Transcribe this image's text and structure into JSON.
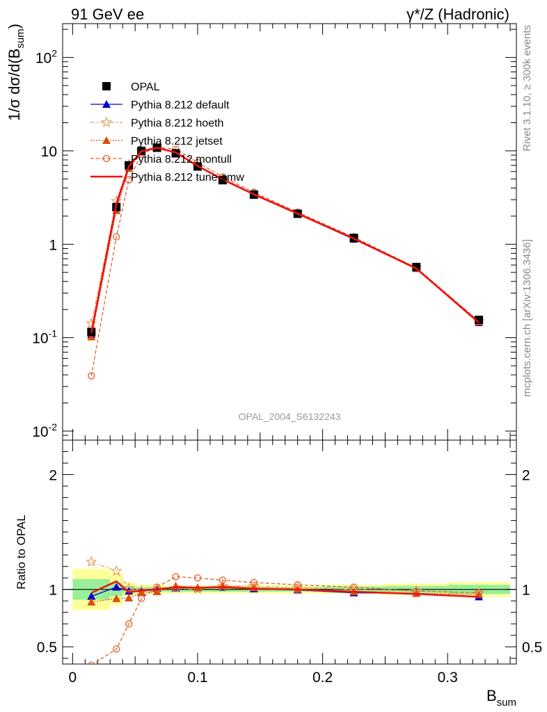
{
  "header": {
    "left_title": "91 GeV ee",
    "right_title": "γ*/Z (Hadronic)"
  },
  "side_text": {
    "rivet": "Rivet 3.1.10, ≥ 300k events",
    "mcplots": "mcplots.cern.ch [arXiv:1306.3436]"
  },
  "watermark": "OPAL_2004_S6132243",
  "chart_data": [
    {
      "type": "line",
      "scale": "log",
      "ylabel": "1/σ dσ/d(B_sum)",
      "ylim": [
        0.008,
        230
      ],
      "ytick_labels": [
        "10^-2",
        "10^-1",
        "1",
        "10",
        "10^2"
      ],
      "x": [
        0.015,
        0.035,
        0.045,
        0.055,
        0.0675,
        0.0825,
        0.1,
        0.12,
        0.145,
        0.18,
        0.225,
        0.275,
        0.325
      ],
      "series": [
        {
          "name": "OPAL",
          "style": "data",
          "color": "#000000",
          "marker": "square",
          "values": [
            0.115,
            2.5,
            7.0,
            10.0,
            10.8,
            9.4,
            6.8,
            4.85,
            3.4,
            2.12,
            1.17,
            0.57,
            0.155
          ]
        },
        {
          "name": "Pythia 8.212 default",
          "color": "#0000cc",
          "marker": "triangle",
          "dash": "",
          "values": [
            0.108,
            2.55,
            6.9,
            9.8,
            10.9,
            9.5,
            6.9,
            4.95,
            3.42,
            2.11,
            1.13,
            0.55,
            0.145
          ]
        },
        {
          "name": "Pythia 8.212 hoeth",
          "color": "#e8a05a",
          "marker": "star",
          "dash": "6,3,2,3",
          "values": [
            0.142,
            2.9,
            7.1,
            9.9,
            10.8,
            9.5,
            6.8,
            5.0,
            3.5,
            2.15,
            1.17,
            0.56,
            0.15
          ]
        },
        {
          "name": "Pythia 8.212 jetset",
          "color": "#d94f0a",
          "marker": "triangle",
          "dash": "2,2",
          "values": [
            0.102,
            2.3,
            6.5,
            9.7,
            10.6,
            9.7,
            6.9,
            5.0,
            3.45,
            2.12,
            1.15,
            0.55,
            0.148
          ]
        },
        {
          "name": "Pythia 8.212 montull",
          "color": "#e0602a",
          "marker": "circle",
          "dash": "5,3",
          "values": [
            0.039,
            1.2,
            4.9,
            9.2,
            11.0,
            10.4,
            7.5,
            5.25,
            3.6,
            2.2,
            1.19,
            0.56,
            0.15
          ]
        },
        {
          "name": "Pythia 8.212 tune-cmw",
          "color": "#ee1111",
          "marker": "none",
          "dash": "",
          "width": 2.5,
          "values": [
            0.112,
            2.7,
            6.8,
            9.9,
            10.8,
            9.6,
            6.9,
            4.95,
            3.42,
            2.13,
            1.15,
            0.55,
            0.145
          ]
        }
      ]
    },
    {
      "type": "line",
      "ylabel": "Ratio to OPAL",
      "xlabel": "B_sum",
      "ylim": [
        0.35,
        2.3
      ],
      "ytick_labels": [
        "0.5",
        "1",
        "2"
      ],
      "xlim": [
        -0.008,
        0.355
      ],
      "xtick_labels": [
        "0",
        "0.1",
        "0.2",
        "0.3"
      ],
      "x": [
        0.015,
        0.035,
        0.045,
        0.055,
        0.0675,
        0.0825,
        0.1,
        0.12,
        0.145,
        0.18,
        0.225,
        0.275,
        0.325
      ],
      "bins": [
        [
          0,
          0.03
        ],
        [
          0.03,
          0.04
        ],
        [
          0.04,
          0.05
        ],
        [
          0.05,
          0.06
        ],
        [
          0.06,
          0.075
        ],
        [
          0.075,
          0.09
        ],
        [
          0.09,
          0.11
        ],
        [
          0.11,
          0.13
        ],
        [
          0.13,
          0.16
        ],
        [
          0.16,
          0.2
        ],
        [
          0.2,
          0.25
        ],
        [
          0.25,
          0.3
        ],
        [
          0.3,
          0.35
        ]
      ],
      "band_stat": [
        0.09,
        0.06,
        0.03,
        0.02,
        0.02,
        0.02,
        0.02,
        0.02,
        0.02,
        0.02,
        0.025,
        0.03,
        0.04
      ],
      "band_total": [
        0.18,
        0.14,
        0.06,
        0.04,
        0.04,
        0.035,
        0.035,
        0.035,
        0.035,
        0.035,
        0.04,
        0.05,
        0.065
      ],
      "series": [
        {
          "name": "Pythia 8.212 default",
          "values": [
            0.94,
            1.02,
            0.985,
            0.98,
            1.01,
            1.01,
            1.015,
            1.02,
            1.005,
            0.995,
            0.97,
            0.965,
            0.935
          ]
        },
        {
          "name": "Pythia 8.212 hoeth",
          "values": [
            1.24,
            1.16,
            1.01,
            0.99,
            1.0,
            1.01,
            1.0,
            1.03,
            1.03,
            1.015,
            1.0,
            0.985,
            0.97
          ]
        },
        {
          "name": "Pythia 8.212 jetset",
          "values": [
            0.89,
            0.92,
            0.925,
            0.97,
            0.98,
            1.03,
            1.015,
            1.03,
            1.015,
            1.0,
            0.98,
            0.965,
            0.955
          ]
        },
        {
          "name": "Pythia 8.212 montull",
          "values": [
            0.34,
            0.48,
            0.7,
            0.92,
            1.02,
            1.11,
            1.1,
            1.08,
            1.06,
            1.04,
            1.02,
            0.985,
            0.97
          ]
        },
        {
          "name": "Pythia 8.212 tune-cmw",
          "values": [
            0.97,
            1.07,
            0.975,
            0.99,
            1.0,
            1.02,
            1.015,
            1.02,
            1.005,
            1.0,
            0.98,
            0.96,
            0.935
          ]
        }
      ]
    }
  ]
}
